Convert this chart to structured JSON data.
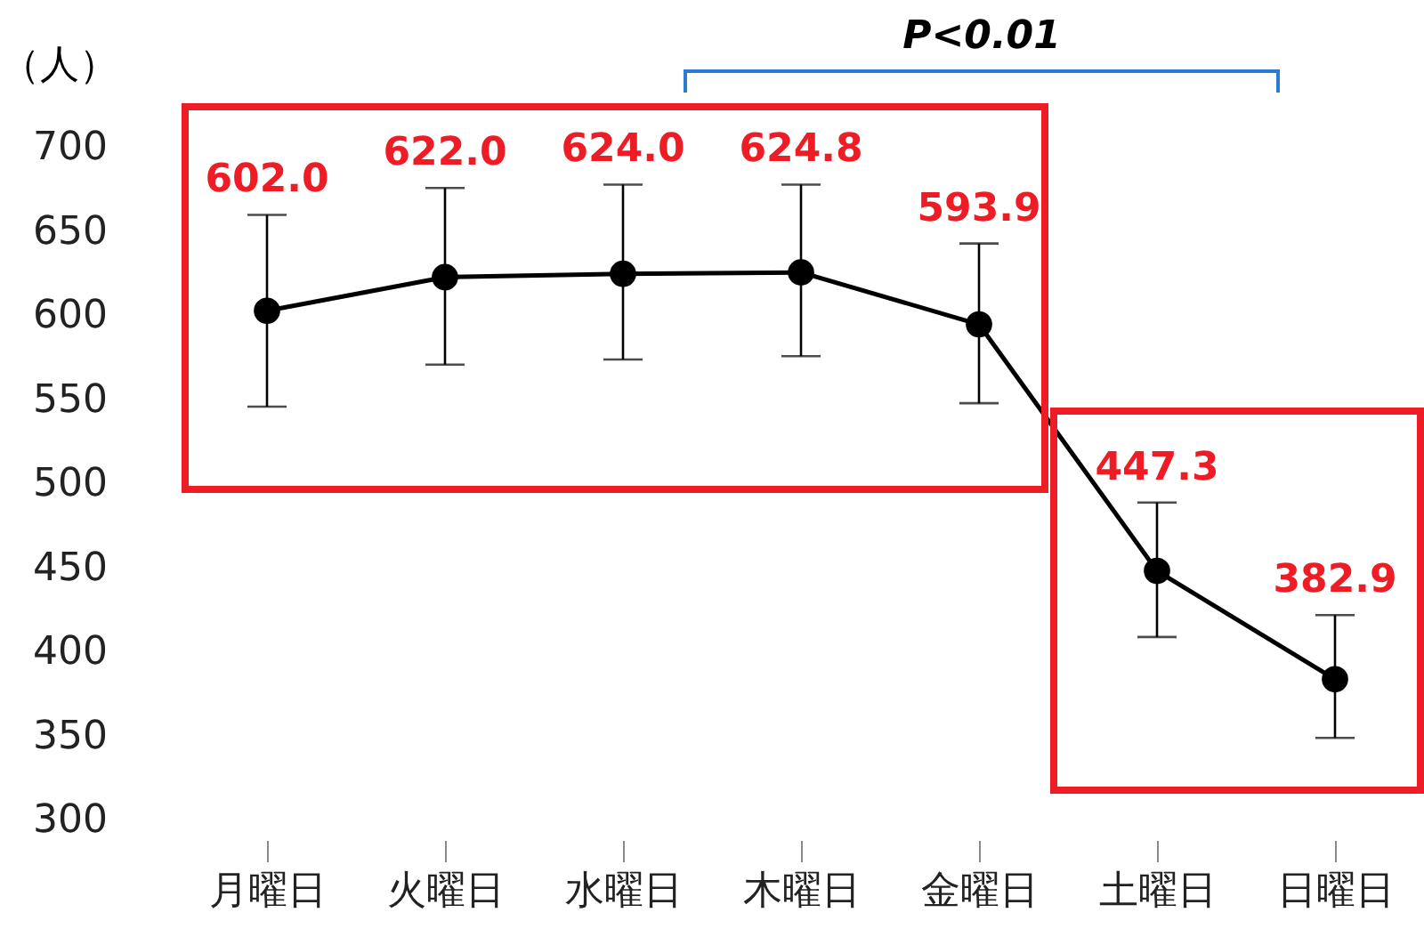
{
  "chart_data": {
    "type": "line",
    "ylabel": "（人）",
    "categories": [
      "月曜日",
      "火曜日",
      "水曜日",
      "木曜日",
      "金曜日",
      "土曜日",
      "日曜日"
    ],
    "series": [
      {
        "color": "#000000",
        "values": [
          602.0,
          622.0,
          624.0,
          624.8,
          593.9,
          447.3,
          382.9
        ],
        "value_labels": [
          "602.0",
          "622.0",
          "624.0",
          "624.8",
          "593.9",
          "447.3",
          "382.9"
        ],
        "errors": [
          [
            545,
            659
          ],
          [
            570,
            675
          ],
          [
            573,
            677
          ],
          [
            575,
            677
          ],
          [
            547,
            642
          ],
          [
            408,
            488
          ],
          [
            348,
            421
          ]
        ]
      }
    ],
    "ylim": [
      300,
      700
    ],
    "yticks": [
      300,
      350,
      400,
      450,
      500,
      550,
      600,
      650,
      700
    ],
    "marker": "circle",
    "line_style": "solid",
    "grid": false,
    "annotations": [
      "P<0.01"
    ]
  }
}
